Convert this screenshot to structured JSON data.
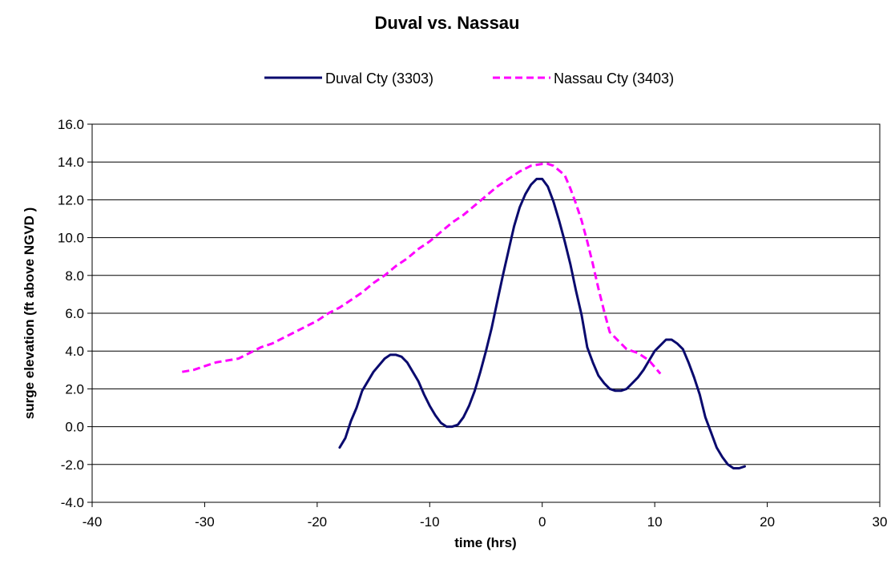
{
  "chart_data": {
    "type": "line",
    "title": "Duval vs. Nassau",
    "xlabel": "time (hrs)",
    "ylabel": "surge elevation (ft above NGVD )",
    "xlim": [
      -40,
      30
    ],
    "ylim": [
      -4,
      16
    ],
    "x_ticks": [
      "-40",
      "-30",
      "-20",
      "-10",
      "0",
      "10",
      "20",
      "30"
    ],
    "y_ticks": [
      "-4.0",
      "-2.0",
      "0.0",
      "2.0",
      "4.0",
      "6.0",
      "8.0",
      "10.0",
      "12.0",
      "14.0",
      "16.0"
    ],
    "grid": "horizontal",
    "legend_position": "top",
    "series": [
      {
        "name": "Duval Cty (3303)",
        "color": "#0a0a6e",
        "dash": "solid",
        "points": [
          [
            -18,
            -1.1
          ],
          [
            -17.5,
            -0.6
          ],
          [
            -17,
            0.3
          ],
          [
            -16.5,
            1.0
          ],
          [
            -16,
            1.9
          ],
          [
            -15,
            2.9
          ],
          [
            -14,
            3.6
          ],
          [
            -13.5,
            3.8
          ],
          [
            -13,
            3.8
          ],
          [
            -12.5,
            3.7
          ],
          [
            -12,
            3.4
          ],
          [
            -11,
            2.4
          ],
          [
            -10.5,
            1.7
          ],
          [
            -10,
            1.1
          ],
          [
            -9.5,
            0.6
          ],
          [
            -9,
            0.2
          ],
          [
            -8.5,
            0.0
          ],
          [
            -8,
            0.0
          ],
          [
            -7.5,
            0.1
          ],
          [
            -7,
            0.5
          ],
          [
            -6.5,
            1.1
          ],
          [
            -6,
            1.9
          ],
          [
            -5.5,
            2.9
          ],
          [
            -5,
            4.0
          ],
          [
            -4.5,
            5.2
          ],
          [
            -4,
            6.6
          ],
          [
            -3.5,
            8.0
          ],
          [
            -3,
            9.3
          ],
          [
            -2.5,
            10.6
          ],
          [
            -2,
            11.6
          ],
          [
            -1.5,
            12.3
          ],
          [
            -1,
            12.8
          ],
          [
            -0.5,
            13.1
          ],
          [
            0,
            13.1
          ],
          [
            0.5,
            12.7
          ],
          [
            1,
            11.9
          ],
          [
            1.5,
            10.9
          ],
          [
            2,
            9.8
          ],
          [
            2.5,
            8.6
          ],
          [
            3,
            7.2
          ],
          [
            3.5,
            5.9
          ],
          [
            4,
            4.2
          ],
          [
            4.5,
            3.4
          ],
          [
            5,
            2.7
          ],
          [
            5.5,
            2.3
          ],
          [
            6,
            2.0
          ],
          [
            6.5,
            1.9
          ],
          [
            7,
            1.9
          ],
          [
            7.5,
            2.0
          ],
          [
            8,
            2.3
          ],
          [
            8.5,
            2.6
          ],
          [
            9,
            3.0
          ],
          [
            9.5,
            3.5
          ],
          [
            10,
            4.0
          ],
          [
            10.5,
            4.3
          ],
          [
            11,
            4.6
          ],
          [
            11.5,
            4.6
          ],
          [
            12,
            4.4
          ],
          [
            12.5,
            4.1
          ],
          [
            13,
            3.4
          ],
          [
            13.5,
            2.6
          ],
          [
            14,
            1.7
          ],
          [
            14.5,
            0.5
          ],
          [
            15,
            -0.3
          ],
          [
            15.5,
            -1.1
          ],
          [
            16,
            -1.6
          ],
          [
            16.5,
            -2.0
          ],
          [
            17,
            -2.2
          ],
          [
            17.5,
            -2.2
          ],
          [
            18,
            -2.1
          ]
        ]
      },
      {
        "name": "Nassau Cty (3403)",
        "color": "#ff00ff",
        "dash": "dashed",
        "points": [
          [
            -32,
            2.9
          ],
          [
            -31,
            3.0
          ],
          [
            -30,
            3.2
          ],
          [
            -29,
            3.4
          ],
          [
            -28,
            3.5
          ],
          [
            -27,
            3.6
          ],
          [
            -26,
            3.9
          ],
          [
            -25,
            4.2
          ],
          [
            -24,
            4.4
          ],
          [
            -23,
            4.7
          ],
          [
            -22,
            5.0
          ],
          [
            -21,
            5.3
          ],
          [
            -20,
            5.6
          ],
          [
            -19,
            6.0
          ],
          [
            -18,
            6.3
          ],
          [
            -17,
            6.7
          ],
          [
            -16,
            7.1
          ],
          [
            -15,
            7.6
          ],
          [
            -14,
            8.0
          ],
          [
            -13,
            8.5
          ],
          [
            -12,
            8.9
          ],
          [
            -11,
            9.4
          ],
          [
            -10,
            9.8
          ],
          [
            -9,
            10.3
          ],
          [
            -8,
            10.8
          ],
          [
            -7,
            11.2
          ],
          [
            -6,
            11.7
          ],
          [
            -5,
            12.2
          ],
          [
            -4,
            12.7
          ],
          [
            -3,
            13.1
          ],
          [
            -2,
            13.5
          ],
          [
            -1,
            13.8
          ],
          [
            0,
            13.9
          ],
          [
            0.5,
            13.9
          ],
          [
            1,
            13.8
          ],
          [
            2,
            13.3
          ],
          [
            2.5,
            12.6
          ],
          [
            3,
            11.8
          ],
          [
            3.5,
            10.9
          ],
          [
            4,
            9.8
          ],
          [
            4.5,
            8.6
          ],
          [
            5,
            7.3
          ],
          [
            5.5,
            6.1
          ],
          [
            6,
            5.0
          ],
          [
            7,
            4.4
          ],
          [
            7.5,
            4.1
          ],
          [
            8.5,
            3.9
          ],
          [
            9.5,
            3.5
          ],
          [
            10.5,
            2.8
          ]
        ]
      }
    ]
  }
}
